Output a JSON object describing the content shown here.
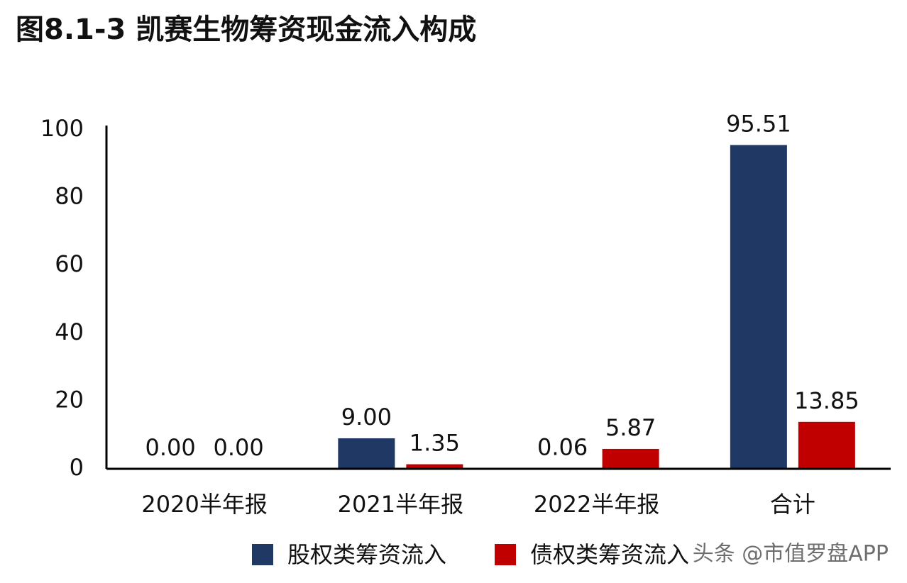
{
  "chart_data": {
    "type": "bar",
    "title": "图8.1-3 凯赛生物筹资现金流入构成",
    "categories": [
      "2020半年报",
      "2021半年报",
      "2022半年报",
      "合计"
    ],
    "series": [
      {
        "name": "股权类筹资流入",
        "color": "#1f3864",
        "values": [
          0,
          9,
          0.06,
          95.51
        ],
        "value_labels": [
          "0.00",
          "9.00",
          "0.06",
          "95.51"
        ]
      },
      {
        "name": "债权类筹资流入",
        "color": "#c00000",
        "values": [
          0,
          1.35,
          5.87,
          13.85
        ],
        "value_labels": [
          "0.00",
          "1.35",
          "5.87",
          "13.85"
        ]
      }
    ],
    "ylim": [
      0,
      100
    ],
    "yticks": [
      0,
      20,
      40,
      60,
      80,
      100
    ],
    "grid": false,
    "watermark": "头条 @市值罗盘APP"
  }
}
